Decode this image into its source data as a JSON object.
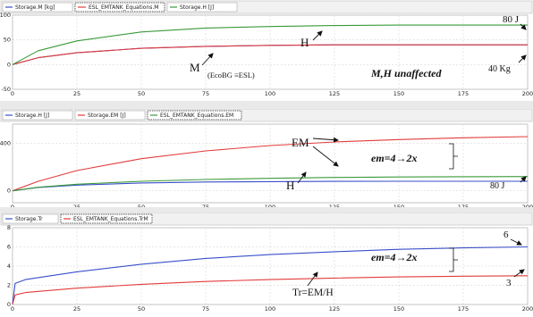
{
  "chart_data": [
    {
      "type": "line",
      "legend": [
        "Storage.M [kg]",
        "ESL_EMTANK_Equations.M",
        "Storage.H [J]"
      ],
      "series": [
        {
          "name": "Storage.M [kg]",
          "color": "#3a4fc9",
          "points": [
            [
              0,
              0
            ],
            [
              10,
              14
            ],
            [
              25,
              24
            ],
            [
              50,
              33
            ],
            [
              75,
              37
            ],
            [
              100,
              39
            ],
            [
              125,
              40
            ],
            [
              150,
              40
            ],
            [
              200,
              40
            ]
          ]
        },
        {
          "name": "ESL_EMTANK_Equations.M",
          "color": "#e23b3b",
          "points": [
            [
              0,
              0
            ],
            [
              10,
              14
            ],
            [
              25,
              24
            ],
            [
              50,
              33
            ],
            [
              75,
              37
            ],
            [
              100,
              39
            ],
            [
              125,
              40
            ],
            [
              150,
              40
            ],
            [
              200,
              40
            ]
          ]
        },
        {
          "name": "Storage.H [J]",
          "color": "#3a9a3a",
          "points": [
            [
              0,
              0
            ],
            [
              10,
              28
            ],
            [
              25,
              48
            ],
            [
              50,
              66
            ],
            [
              75,
              74
            ],
            [
              100,
              77
            ],
            [
              125,
              79
            ],
            [
              150,
              80
            ],
            [
              200,
              80
            ]
          ]
        }
      ],
      "yticks": [
        -50,
        0,
        50,
        100
      ],
      "xticks": [
        0,
        25,
        50,
        75,
        100,
        125,
        150,
        175,
        200
      ],
      "ylim": [
        -50,
        100
      ],
      "xlim": [
        0,
        200
      ],
      "annotations": [
        "80 J",
        "H",
        "M",
        "(EcoBG ≡ESL)",
        "M,H unaffected",
        "40 Kg"
      ]
    },
    {
      "type": "line",
      "legend": [
        "Storage.H [J]",
        "Storage.EM [J]",
        "ESL_EMTANK_Equations.EM"
      ],
      "series": [
        {
          "name": "Storage.H [J]",
          "color": "#3a4fc9",
          "points": [
            [
              0,
              0
            ],
            [
              10,
              28
            ],
            [
              25,
              48
            ],
            [
              50,
              66
            ],
            [
              75,
              74
            ],
            [
              100,
              77
            ],
            [
              125,
              79
            ],
            [
              150,
              80
            ],
            [
              200,
              80
            ]
          ]
        },
        {
          "name": "Storage.EM [J]",
          "color": "#e23b3b",
          "points": [
            [
              0,
              0
            ],
            [
              10,
              80
            ],
            [
              25,
              170
            ],
            [
              50,
              270
            ],
            [
              75,
              335
            ],
            [
              100,
              380
            ],
            [
              125,
              410
            ],
            [
              150,
              430
            ],
            [
              175,
              445
            ],
            [
              200,
              455
            ]
          ]
        },
        {
          "name": "ESL_EMTANK_Equations.EM",
          "color": "#3a9a3a",
          "points": [
            [
              0,
              0
            ],
            [
              10,
              30
            ],
            [
              25,
              55
            ],
            [
              50,
              80
            ],
            [
              75,
              95
            ],
            [
              100,
              105
            ],
            [
              125,
              112
            ],
            [
              150,
              116
            ],
            [
              175,
              118
            ],
            [
              200,
              120
            ]
          ]
        }
      ],
      "yticks": [
        0,
        400
      ],
      "xticks": [
        0,
        25,
        50,
        75,
        100,
        125,
        150,
        175,
        200
      ],
      "ylim": [
        -100,
        560
      ],
      "xlim": [
        0,
        200
      ],
      "annotations": [
        "EM",
        "em=4→2x",
        "H",
        "80 J"
      ]
    },
    {
      "type": "line",
      "legend": [
        "Storage.Tr",
        "ESL_EMTANK_Equations.TrM"
      ],
      "series": [
        {
          "name": "Storage.Tr",
          "color": "#3a4fc9",
          "points": [
            [
              0,
              0
            ],
            [
              1,
              2.2
            ],
            [
              5,
              2.6
            ],
            [
              25,
              3.4
            ],
            [
              50,
              4.2
            ],
            [
              75,
              4.8
            ],
            [
              100,
              5.2
            ],
            [
              125,
              5.5
            ],
            [
              150,
              5.75
            ],
            [
              175,
              5.9
            ],
            [
              200,
              6
            ]
          ]
        },
        {
          "name": "ESL_EMTANK_Equations.TrM",
          "color": "#e23b3b",
          "points": [
            [
              0,
              0
            ],
            [
              1,
              1.0
            ],
            [
              5,
              1.25
            ],
            [
              25,
              1.7
            ],
            [
              50,
              2.1
            ],
            [
              75,
              2.4
            ],
            [
              100,
              2.6
            ],
            [
              125,
              2.75
            ],
            [
              150,
              2.87
            ],
            [
              175,
              2.95
            ],
            [
              200,
              3
            ]
          ]
        }
      ],
      "yticks": [
        0,
        2,
        4,
        6,
        8
      ],
      "xticks": [
        0,
        25,
        50,
        75,
        100,
        125,
        150,
        175,
        200
      ],
      "ylim": [
        0,
        8
      ],
      "xlim": [
        0,
        200
      ],
      "annotations": [
        "6",
        "em=4→2x",
        "Tr=EM/H",
        "3"
      ]
    }
  ]
}
